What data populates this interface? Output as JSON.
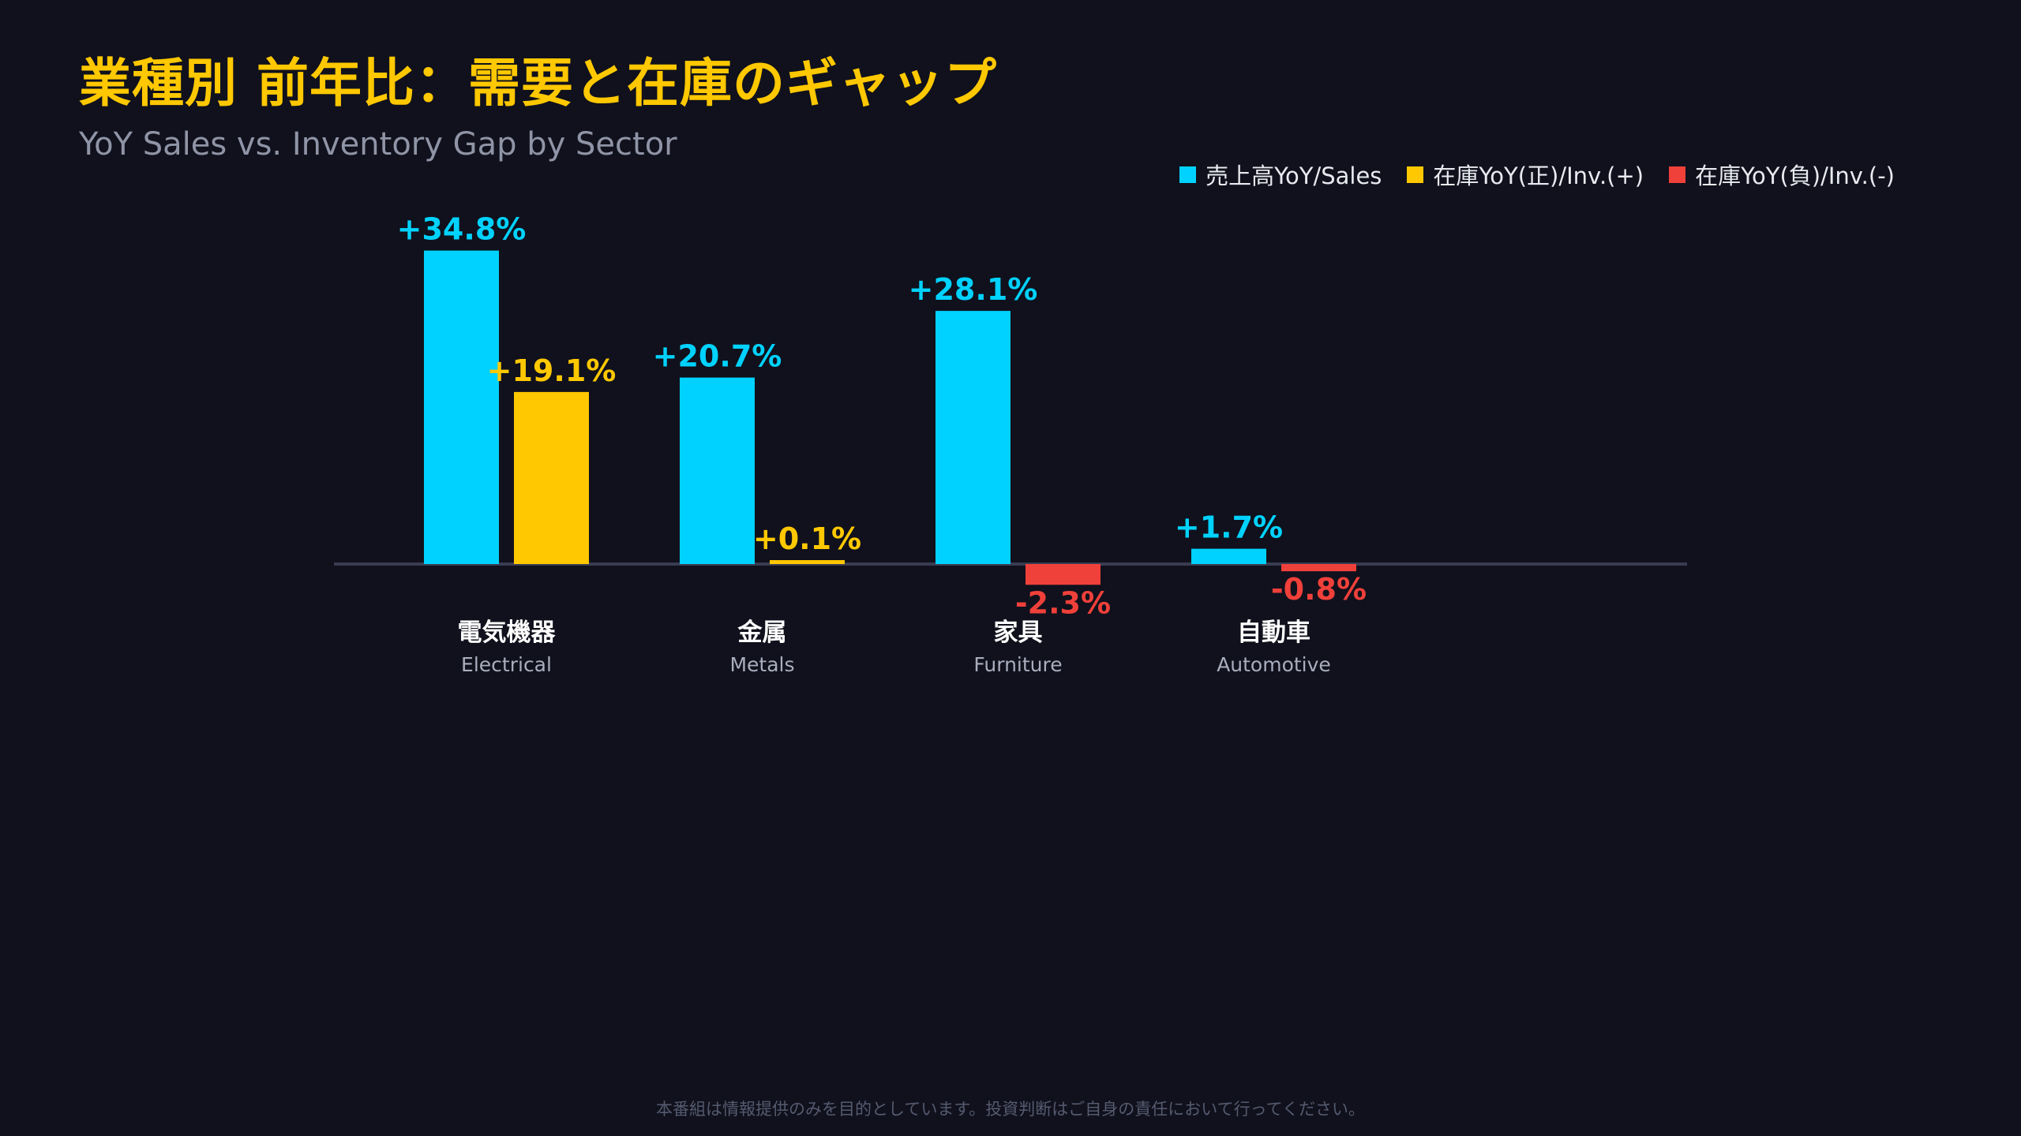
{
  "title": "業種別 前年比：需要と在庫のギャップ",
  "subtitle": "YoY Sales vs. Inventory Gap by Sector",
  "footer": "本番組は情報提供のみを目的としています。投資判断はご自身の責任において行ってください。",
  "colors": {
    "sales": "#00d2ff",
    "inv_pos": "#ffc800",
    "inv_neg": "#f0403a",
    "baseline": "#3a3c52",
    "category_ja": "#ffffff",
    "category_en": "#a9adbd"
  },
  "legend": {
    "sales": "売上高YoY/Sales",
    "inv_pos": "在庫YoY(正)/Inv.(+)",
    "inv_neg": "在庫YoY(負)/Inv.(-)"
  },
  "chart_data": {
    "type": "bar",
    "categories_ja": [
      "電気機器",
      "金属",
      "家具",
      "自動車"
    ],
    "categories_en": [
      "Electrical",
      "Metals",
      "Furniture",
      "Automotive"
    ],
    "series": [
      {
        "name": "売上高YoY/Sales",
        "values": [
          34.8,
          20.7,
          28.1,
          1.7
        ],
        "labels": [
          "+34.8%",
          "+20.7%",
          "+28.1%",
          "+1.7%"
        ]
      },
      {
        "name": "在庫YoY/Inv.",
        "values": [
          19.1,
          0.1,
          -2.3,
          -0.8
        ],
        "labels": [
          "+19.1%",
          "+0.1%",
          "-2.3%",
          "-0.8%"
        ]
      }
    ],
    "grid": false,
    "legend_position": "top-right"
  }
}
